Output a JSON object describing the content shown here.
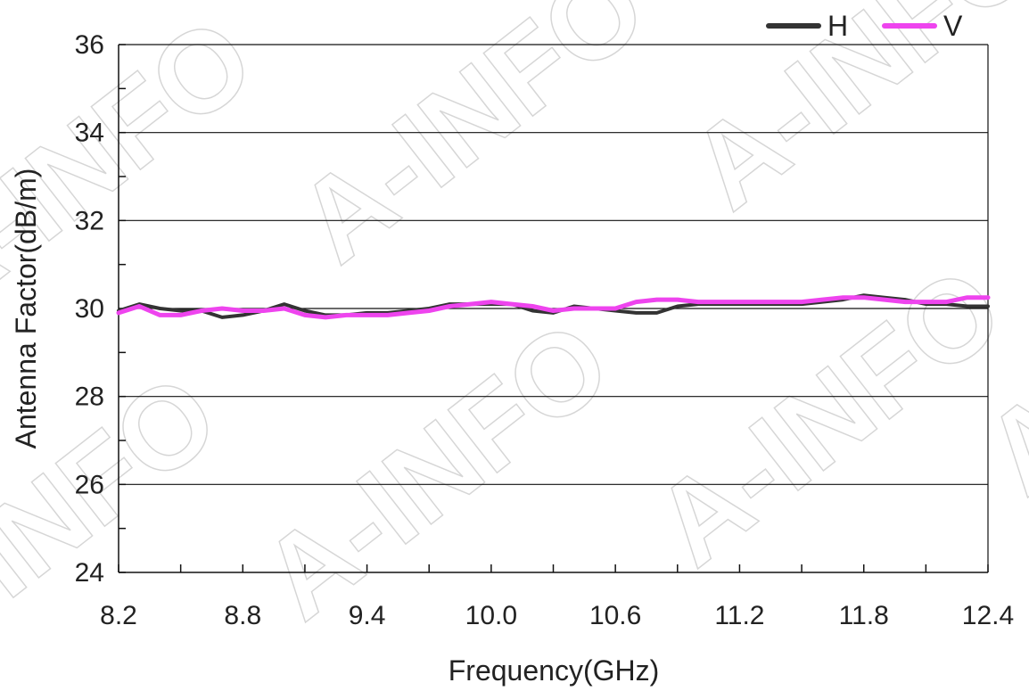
{
  "chart_data": {
    "type": "line",
    "title": "",
    "xlabel": "Frequency(GHz)",
    "ylabel": "Antenna Factor(dB/m)",
    "xlim": [
      8.2,
      12.4
    ],
    "ylim": [
      24,
      36
    ],
    "xticks": [
      8.2,
      8.8,
      9.4,
      10.0,
      10.6,
      11.2,
      11.8,
      12.4
    ],
    "xtick_labels": [
      "8.2",
      "8.8",
      "9.4",
      "10.0",
      "10.6",
      "11.2",
      "11.8",
      "12.4"
    ],
    "yticks": [
      24,
      26,
      28,
      30,
      32,
      34,
      36
    ],
    "ytick_labels": [
      "24",
      "26",
      "28",
      "30",
      "32",
      "34",
      "36"
    ],
    "grid": "horizontal",
    "legend": "top-right",
    "series": [
      {
        "name": "H",
        "color": "#333333",
        "x": [
          8.2,
          8.3,
          8.4,
          8.5,
          8.6,
          8.7,
          8.8,
          8.9,
          9.0,
          9.1,
          9.2,
          9.3,
          9.4,
          9.5,
          9.6,
          9.7,
          9.8,
          9.9,
          10.0,
          10.1,
          10.2,
          10.3,
          10.4,
          10.5,
          10.6,
          10.7,
          10.8,
          10.9,
          11.0,
          11.1,
          11.2,
          11.3,
          11.4,
          11.5,
          11.6,
          11.7,
          11.8,
          11.9,
          12.0,
          12.1,
          12.2,
          12.3,
          12.4
        ],
        "values": [
          29.95,
          30.1,
          30.0,
          29.95,
          29.95,
          29.8,
          29.85,
          29.95,
          30.1,
          29.95,
          29.85,
          29.85,
          29.9,
          29.9,
          29.95,
          30.0,
          30.1,
          30.1,
          30.1,
          30.1,
          29.95,
          29.9,
          30.05,
          30.0,
          29.95,
          29.9,
          29.9,
          30.05,
          30.1,
          30.1,
          30.1,
          30.1,
          30.1,
          30.1,
          30.15,
          30.2,
          30.3,
          30.25,
          30.2,
          30.1,
          30.1,
          30.05,
          30.05
        ]
      },
      {
        "name": "V",
        "color": "#ee44ee",
        "x": [
          8.2,
          8.3,
          8.4,
          8.5,
          8.6,
          8.7,
          8.8,
          8.9,
          9.0,
          9.1,
          9.2,
          9.3,
          9.4,
          9.5,
          9.6,
          9.7,
          9.8,
          9.9,
          10.0,
          10.1,
          10.2,
          10.3,
          10.4,
          10.5,
          10.6,
          10.7,
          10.8,
          10.9,
          11.0,
          11.1,
          11.2,
          11.3,
          11.4,
          11.5,
          11.6,
          11.7,
          11.8,
          11.9,
          12.0,
          12.1,
          12.2,
          12.3,
          12.4
        ],
        "values": [
          29.9,
          30.05,
          29.85,
          29.85,
          29.95,
          30.0,
          29.95,
          29.95,
          30.0,
          29.85,
          29.8,
          29.85,
          29.85,
          29.85,
          29.9,
          29.95,
          30.05,
          30.1,
          30.15,
          30.1,
          30.05,
          29.95,
          30.0,
          30.0,
          30.0,
          30.15,
          30.2,
          30.2,
          30.15,
          30.15,
          30.15,
          30.15,
          30.15,
          30.15,
          30.2,
          30.25,
          30.25,
          30.2,
          30.15,
          30.15,
          30.15,
          30.25,
          30.25
        ]
      }
    ],
    "watermark_text": "A-INFO"
  }
}
